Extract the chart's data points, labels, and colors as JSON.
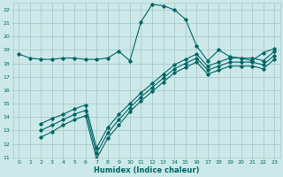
{
  "bg_color": "#cce8e8",
  "grid_color": "#aacccc",
  "line_color": "#006666",
  "xlabel": "Humidex (Indice chaleur)",
  "xlim": [
    -0.5,
    23.5
  ],
  "ylim": [
    11,
    22.5
  ],
  "yticks": [
    11,
    12,
    13,
    14,
    15,
    16,
    17,
    18,
    19,
    20,
    21,
    22
  ],
  "xticks": [
    0,
    1,
    2,
    3,
    4,
    5,
    6,
    7,
    8,
    9,
    10,
    11,
    12,
    13,
    14,
    15,
    16,
    17,
    18,
    19,
    20,
    21,
    22,
    23
  ],
  "line1_x": [
    0,
    1,
    2,
    3,
    4,
    5,
    6,
    7,
    8,
    9,
    10,
    11,
    12,
    13,
    14,
    15,
    16,
    17,
    18,
    19,
    20,
    21,
    22,
    23
  ],
  "line1_y": [
    18.7,
    18.4,
    18.3,
    18.3,
    18.4,
    18.4,
    18.3,
    18.3,
    18.4,
    18.9,
    18.2,
    21.1,
    22.4,
    22.3,
    22.0,
    21.3,
    19.3,
    18.2,
    19.0,
    18.5,
    18.4,
    18.2,
    18.8,
    19.1
  ],
  "line2_x": [
    2,
    3,
    4,
    5,
    6,
    7,
    8,
    9,
    10,
    11,
    12,
    13,
    14,
    15,
    16,
    17,
    18,
    19,
    20,
    21,
    22,
    23
  ],
  "line2_y": [
    13.5,
    13.9,
    14.2,
    14.6,
    14.9,
    11.7,
    13.2,
    14.2,
    15.0,
    15.8,
    16.5,
    17.2,
    17.9,
    18.3,
    18.7,
    17.8,
    18.1,
    18.4,
    18.4,
    18.4,
    18.2,
    18.9
  ],
  "line3_x": [
    2,
    3,
    4,
    5,
    6,
    7,
    8,
    9,
    10,
    11,
    12,
    13,
    14,
    15,
    16,
    17,
    18,
    19,
    20,
    21,
    22,
    23
  ],
  "line3_y": [
    13.0,
    13.4,
    13.8,
    14.2,
    14.5,
    11.3,
    12.8,
    13.8,
    14.7,
    15.5,
    16.2,
    16.9,
    17.6,
    18.0,
    18.4,
    17.5,
    17.8,
    18.1,
    18.1,
    18.1,
    17.9,
    18.6
  ],
  "line4_x": [
    2,
    3,
    4,
    5,
    6,
    7,
    8,
    9,
    10,
    11,
    12,
    13,
    14,
    15,
    16,
    17,
    18,
    19,
    20,
    21,
    22,
    23
  ],
  "line4_y": [
    12.5,
    12.9,
    13.4,
    13.8,
    14.1,
    10.9,
    12.4,
    13.4,
    14.4,
    15.2,
    15.9,
    16.6,
    17.3,
    17.7,
    18.1,
    17.2,
    17.5,
    17.8,
    17.8,
    17.8,
    17.6,
    18.3
  ]
}
